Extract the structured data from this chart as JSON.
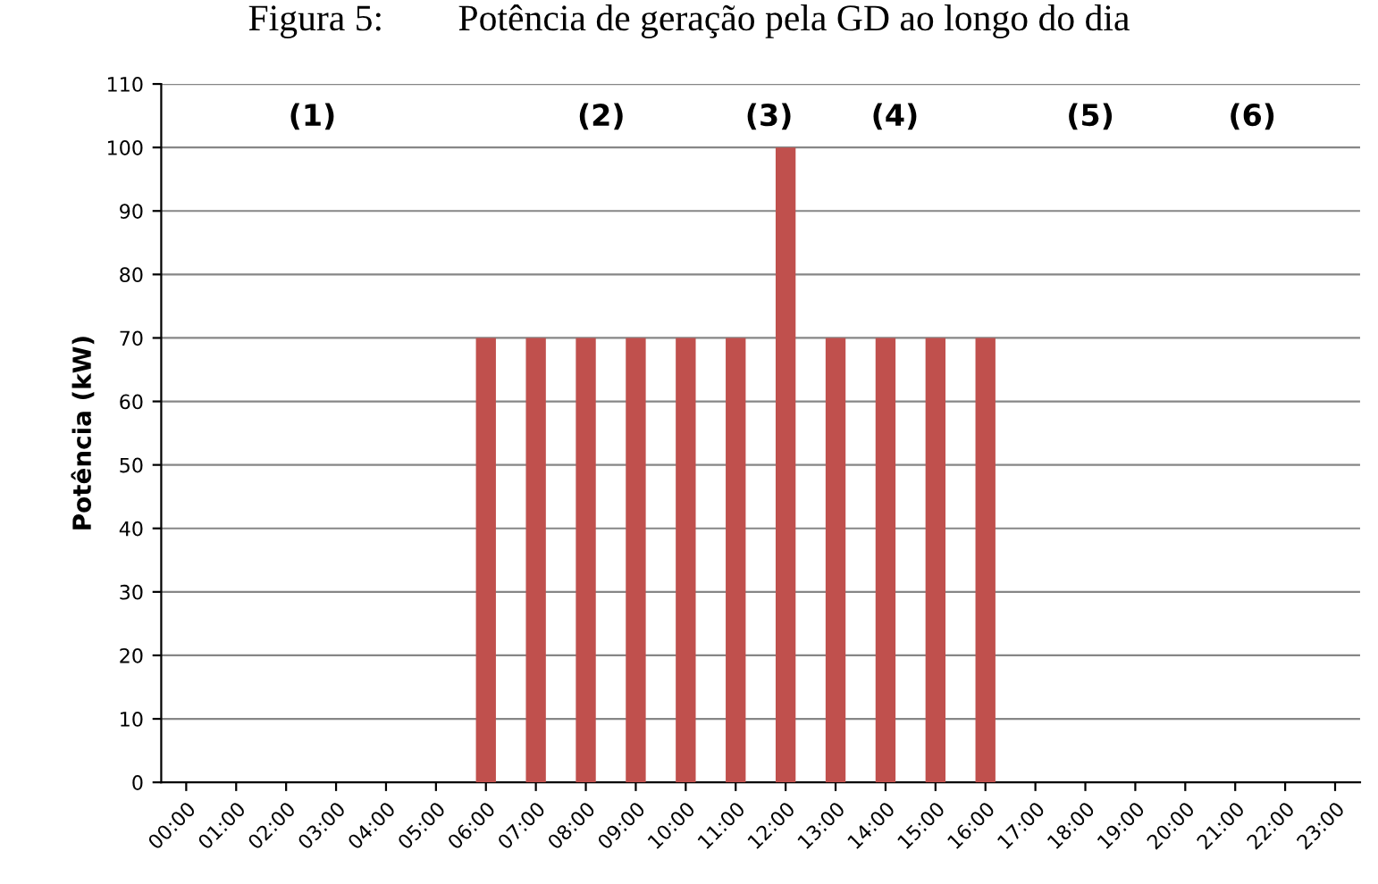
{
  "chart_data": {
    "type": "bar",
    "title": "Figura 5:        Potência de geração pela GD ao longo do dia",
    "ylabel": "Potência (kW)",
    "categories": [
      "00:00",
      "01:00",
      "02:00",
      "03:00",
      "04:00",
      "05:00",
      "06:00",
      "07:00",
      "08:00",
      "09:00",
      "10:00",
      "11:00",
      "12:00",
      "13:00",
      "14:00",
      "15:00",
      "16:00",
      "17:00",
      "18:00",
      "19:00",
      "20:00",
      "21:00",
      "22:00",
      "23:00"
    ],
    "values": [
      0,
      0,
      0,
      0,
      0,
      0,
      70,
      70,
      70,
      70,
      70,
      70,
      100,
      70,
      70,
      70,
      70,
      0,
      0,
      0,
      0,
      0,
      0,
      0
    ],
    "color": "#c0504d",
    "ylim": [
      0,
      110
    ],
    "yticks": [
      0,
      10,
      20,
      30,
      40,
      50,
      60,
      70,
      80,
      90,
      100,
      110
    ],
    "grid": "y",
    "legend": false,
    "annotations": [
      "(1)",
      "(2)",
      "(3)",
      "(4)",
      "(5)",
      "(6)"
    ]
  }
}
